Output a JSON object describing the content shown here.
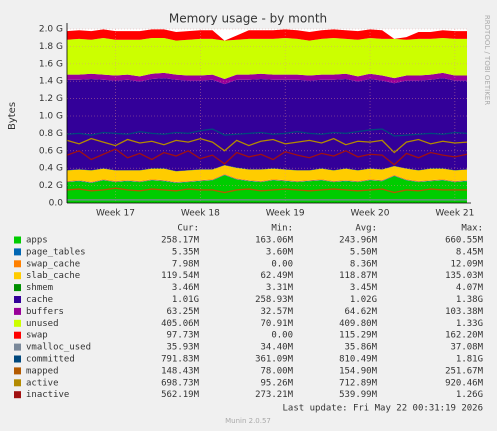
{
  "chart_data": {
    "type": "area",
    "title": "Memory usage - by month",
    "y_label": "Bytes",
    "side_text": "RRDTOOL / TOBI OETIKER",
    "footer": "Last update: Fri May 22 00:31:19 2026",
    "version": "Munin 2.0.57",
    "legend_headers": [
      "Cur:",
      "Min:",
      "Avg:",
      "Max:"
    ],
    "categories": [
      null,
      null,
      null,
      null,
      "Week 17",
      null,
      null,
      null,
      null,
      null,
      null,
      "Week 18",
      null,
      null,
      null,
      null,
      null,
      null,
      "Week 19",
      null,
      null,
      null,
      null,
      null,
      null,
      "Week 20",
      null,
      null,
      null,
      null,
      null,
      null,
      "Week 21",
      null
    ],
    "ylim": [
      0,
      2.0
    ],
    "yticks": [
      {
        "value": 0,
        "label": "0.0"
      },
      {
        "value": 0.2,
        "label": "0.2 G"
      },
      {
        "value": 0.4,
        "label": "0.4 G"
      },
      {
        "value": 0.6,
        "label": "0.6 G"
      },
      {
        "value": 0.8,
        "label": "0.8 G"
      },
      {
        "value": 1.0,
        "label": "1.0 G"
      },
      {
        "value": 1.2,
        "label": "1.2 G"
      },
      {
        "value": 1.4,
        "label": "1.4 G"
      },
      {
        "value": 1.6,
        "label": "1.6 G"
      },
      {
        "value": 1.8,
        "label": "1.8 G"
      },
      {
        "value": 2.0,
        "label": "2.0 G"
      }
    ],
    "grid": true,
    "series": [
      {
        "name": "apps",
        "type": "area",
        "color": "#00cc00",
        "cur": "258.17M",
        "min": "163.06M",
        "avg": "243.96M",
        "max": "660.55M",
        "values": [
          0.24,
          0.25,
          0.23,
          0.26,
          0.24,
          0.25,
          0.24,
          0.26,
          0.25,
          0.23,
          0.24,
          0.25,
          0.26,
          0.32,
          0.27,
          0.25,
          0.24,
          0.26,
          0.25,
          0.24,
          0.25,
          0.26,
          0.24,
          0.25,
          0.24,
          0.26,
          0.25,
          0.31,
          0.26,
          0.24,
          0.25,
          0.26,
          0.24,
          0.25
        ]
      },
      {
        "name": "page_tables",
        "type": "area",
        "color": "#0066b3",
        "cur": "5.35M",
        "min": "3.60M",
        "avg": "5.50M",
        "max": "8.45M",
        "values": [
          0.005,
          0.005,
          0.005,
          0.005,
          0.005,
          0.005,
          0.005,
          0.005,
          0.005,
          0.005,
          0.005,
          0.005,
          0.005,
          0.005,
          0.005,
          0.005,
          0.005,
          0.005,
          0.005,
          0.005,
          0.005,
          0.005,
          0.005,
          0.005,
          0.005,
          0.005,
          0.005,
          0.005,
          0.005,
          0.005,
          0.005,
          0.005,
          0.005,
          0.005
        ]
      },
      {
        "name": "swap_cache",
        "type": "area",
        "color": "#ff8000",
        "cur": "7.98M",
        "min": "0.00",
        "avg": "8.36M",
        "max": "12.09M",
        "values": [
          0.008,
          0.008,
          0.008,
          0.008,
          0.008,
          0.008,
          0.008,
          0.008,
          0.008,
          0.008,
          0.008,
          0.008,
          0.008,
          0.008,
          0.008,
          0.008,
          0.008,
          0.008,
          0.008,
          0.008,
          0.008,
          0.008,
          0.008,
          0.008,
          0.008,
          0.008,
          0.008,
          0.008,
          0.008,
          0.008,
          0.008,
          0.008,
          0.008,
          0.008
        ]
      },
      {
        "name": "slab_cache",
        "type": "area",
        "color": "#ffcc00",
        "cur": "119.54M",
        "min": "62.49M",
        "avg": "118.87M",
        "max": "135.03M",
        "values": [
          0.12,
          0.12,
          0.13,
          0.12,
          0.12,
          0.11,
          0.12,
          0.12,
          0.13,
          0.12,
          0.12,
          0.12,
          0.11,
          0.1,
          0.12,
          0.12,
          0.13,
          0.12,
          0.12,
          0.12,
          0.11,
          0.12,
          0.12,
          0.13,
          0.12,
          0.12,
          0.12,
          0.1,
          0.12,
          0.12,
          0.13,
          0.12,
          0.12,
          0.12
        ]
      },
      {
        "name": "shmem",
        "type": "area",
        "color": "#008f00",
        "cur": "3.46M",
        "min": "3.31M",
        "avg": "3.45M",
        "max": "4.07M",
        "values": [
          0.003,
          0.003,
          0.003,
          0.003,
          0.003,
          0.003,
          0.003,
          0.003,
          0.003,
          0.003,
          0.003,
          0.003,
          0.003,
          0.003,
          0.003,
          0.003,
          0.003,
          0.003,
          0.003,
          0.003,
          0.003,
          0.003,
          0.003,
          0.003,
          0.003,
          0.003,
          0.003,
          0.003,
          0.003,
          0.003,
          0.003,
          0.003,
          0.003,
          0.003
        ]
      },
      {
        "name": "cache",
        "type": "area",
        "color": "#330099",
        "cur": "1.01G",
        "min": "258.93M",
        "avg": "1.02G",
        "max": "1.38G",
        "values": [
          1.04,
          1.03,
          1.05,
          1.02,
          1.03,
          1.04,
          1.02,
          1.03,
          1.04,
          1.05,
          1.03,
          1.02,
          1.03,
          0.93,
          1.01,
          1.03,
          1.04,
          1.02,
          1.03,
          1.04,
          1.03,
          1.02,
          1.04,
          1.03,
          1.02,
          1.03,
          1.02,
          0.95,
          1.01,
          1.03,
          1.02,
          1.04,
          1.03,
          1.02
        ]
      },
      {
        "name": "buffers",
        "type": "area",
        "color": "#990099",
        "cur": "63.25M",
        "min": "32.57M",
        "avg": "64.62M",
        "max": "103.38M",
        "values": [
          0.06,
          0.06,
          0.06,
          0.06,
          0.06,
          0.06,
          0.06,
          0.06,
          0.06,
          0.06,
          0.06,
          0.06,
          0.06,
          0.06,
          0.06,
          0.06,
          0.06,
          0.06,
          0.06,
          0.06,
          0.06,
          0.06,
          0.06,
          0.06,
          0.06,
          0.06,
          0.06,
          0.06,
          0.06,
          0.06,
          0.06,
          0.06,
          0.06,
          0.06
        ]
      },
      {
        "name": "unused",
        "type": "area",
        "color": "#ccff00",
        "cur": "405.06M",
        "min": "70.91M",
        "avg": "409.80M",
        "max": "1.33G",
        "values": [
          0.4,
          0.41,
          0.39,
          0.42,
          0.41,
          0.4,
          0.42,
          0.41,
          0.4,
          0.39,
          0.41,
          0.42,
          0.41,
          0.44,
          0.4,
          0.41,
          0.4,
          0.41,
          0.42,
          0.41,
          0.4,
          0.41,
          0.42,
          0.4,
          0.42,
          0.41,
          0.42,
          0.45,
          0.41,
          0.42,
          0.41,
          0.4,
          0.42,
          0.42
        ]
      },
      {
        "name": "swap",
        "type": "area",
        "color": "#ff0000",
        "cur": "97.73M",
        "min": "0.00",
        "avg": "115.29M",
        "max": "162.20M",
        "values": [
          0.1,
          0.1,
          0.1,
          0.1,
          0.1,
          0.1,
          0.1,
          0.1,
          0.1,
          0.1,
          0.1,
          0.1,
          0.1,
          0,
          0.05,
          0.1,
          0.1,
          0.1,
          0.1,
          0.1,
          0.1,
          0.1,
          0.1,
          0.1,
          0.1,
          0.1,
          0.1,
          0,
          0.03,
          0.08,
          0.08,
          0.09,
          0.09,
          0.09
        ]
      },
      {
        "name": "vmalloc_used",
        "type": "line",
        "color": "#7a8899",
        "cur": "35.93M",
        "min": "34.40M",
        "avg": "35.86M",
        "max": "37.08M",
        "values": [
          0.036,
          0.036,
          0.036,
          0.036,
          0.036,
          0.036,
          0.036,
          0.036,
          0.036,
          0.036,
          0.036,
          0.036,
          0.036,
          0.036,
          0.036,
          0.036,
          0.036,
          0.036,
          0.036,
          0.036,
          0.036,
          0.036,
          0.036,
          0.036,
          0.036,
          0.036,
          0.036,
          0.036,
          0.036,
          0.036,
          0.036,
          0.036,
          0.036,
          0.036
        ]
      },
      {
        "name": "committed",
        "type": "line",
        "color": "#00487d",
        "cur": "791.83M",
        "min": "361.09M",
        "avg": "810.49M",
        "max": "1.81G",
        "values": [
          0.79,
          0.8,
          0.78,
          0.81,
          0.8,
          0.79,
          0.82,
          0.8,
          0.79,
          0.81,
          0.8,
          0.83,
          0.85,
          0.78,
          0.79,
          0.8,
          0.81,
          0.79,
          0.8,
          0.82,
          0.8,
          0.79,
          0.81,
          0.8,
          0.82,
          0.84,
          0.85,
          0.77,
          0.78,
          0.79,
          0.8,
          0.79,
          0.81,
          0.8
        ]
      },
      {
        "name": "mapped",
        "type": "line",
        "color": "#b35a00",
        "cur": "148.43M",
        "min": "78.00M",
        "avg": "154.90M",
        "max": "251.67M",
        "values": [
          0.15,
          0.16,
          0.14,
          0.15,
          0.17,
          0.15,
          0.14,
          0.16,
          0.15,
          0.14,
          0.16,
          0.15,
          0.15,
          0.12,
          0.15,
          0.16,
          0.14,
          0.15,
          0.16,
          0.15,
          0.14,
          0.15,
          0.16,
          0.15,
          0.14,
          0.15,
          0.16,
          0.12,
          0.15,
          0.14,
          0.16,
          0.15,
          0.15,
          0.15
        ]
      },
      {
        "name": "active",
        "type": "line",
        "color": "#b38a00",
        "cur": "698.73M",
        "min": "95.26M",
        "avg": "712.89M",
        "max": "920.46M",
        "values": [
          0.72,
          0.68,
          0.74,
          0.7,
          0.66,
          0.73,
          0.69,
          0.71,
          0.67,
          0.72,
          0.7,
          0.74,
          0.7,
          0.6,
          0.72,
          0.66,
          0.71,
          0.73,
          0.68,
          0.7,
          0.72,
          0.69,
          0.74,
          0.67,
          0.71,
          0.7,
          0.72,
          0.58,
          0.7,
          0.73,
          0.68,
          0.71,
          0.69,
          0.7
        ]
      },
      {
        "name": "inactive",
        "type": "line",
        "color": "#a01010",
        "cur": "562.19M",
        "min": "273.21M",
        "avg": "539.99M",
        "max": "1.26G",
        "values": [
          0.55,
          0.6,
          0.5,
          0.56,
          0.62,
          0.52,
          0.57,
          0.5,
          0.58,
          0.54,
          0.6,
          0.51,
          0.55,
          0.45,
          0.58,
          0.53,
          0.56,
          0.5,
          0.59,
          0.55,
          0.52,
          0.57,
          0.54,
          0.6,
          0.53,
          0.56,
          0.55,
          0.44,
          0.57,
          0.52,
          0.58,
          0.55,
          0.53,
          0.56
        ]
      }
    ]
  }
}
